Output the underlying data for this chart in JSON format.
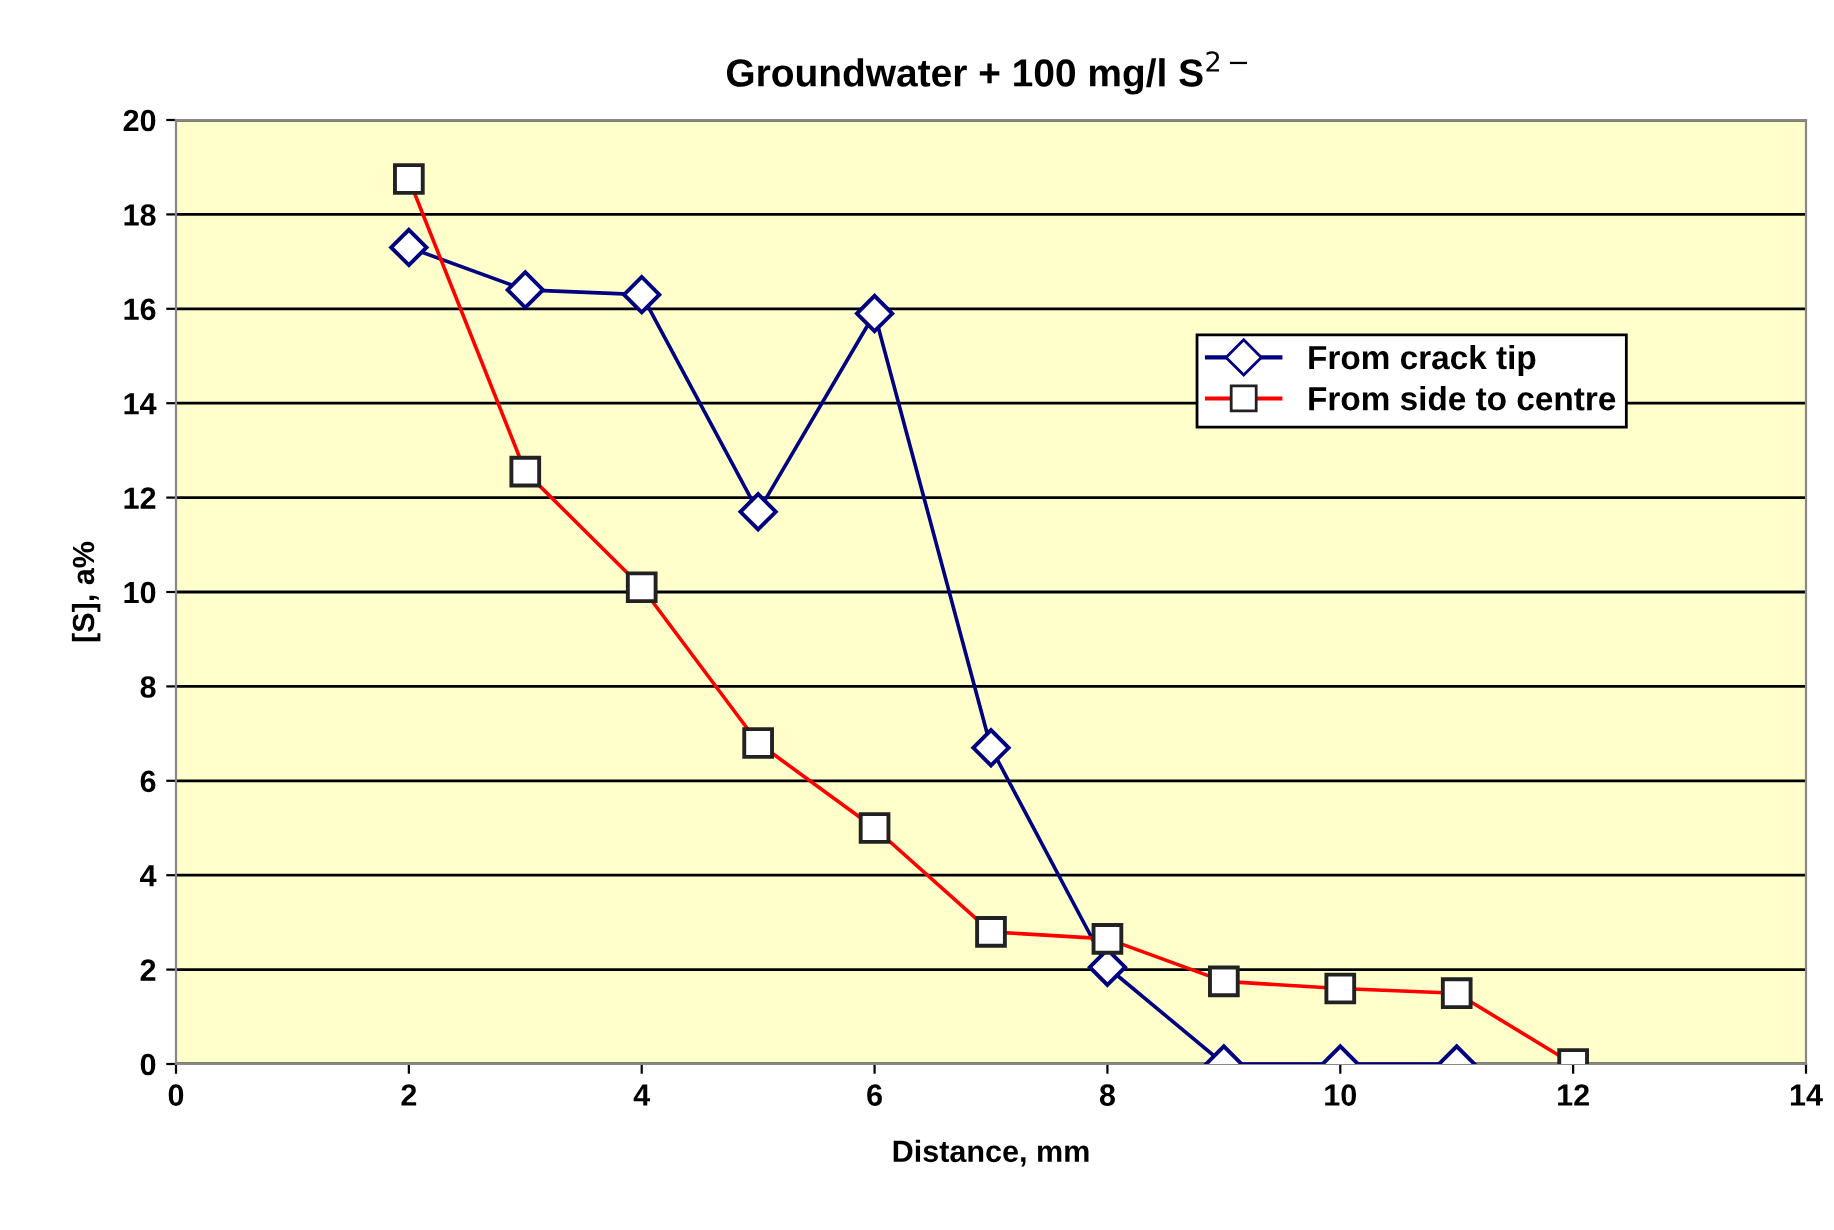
{
  "chart_data": {
    "type": "line",
    "title": "Groundwater + 100 mg/l S$^{2−}$",
    "xlabel": "Distance, mm",
    "ylabel": "[S], a%",
    "series": [
      {
        "name": "From crack tip",
        "color": "#000080",
        "marker": "diamond",
        "x": [
          2,
          3,
          4,
          5,
          6,
          7,
          8,
          9,
          10,
          11
        ],
        "values": [
          17.3,
          16.4,
          16.3,
          11.7,
          15.9,
          6.7,
          2.05,
          0,
          0,
          0
        ]
      },
      {
        "name": "From side to centre",
        "color": "#ff0000",
        "marker": "square",
        "x": [
          2,
          3,
          4,
          5,
          6,
          7,
          8,
          9,
          10,
          11,
          12
        ],
        "values": [
          18.75,
          12.55,
          10.1,
          6.8,
          5.0,
          2.8,
          2.65,
          1.75,
          1.6,
          1.5,
          0
        ]
      }
    ],
    "xlim": [
      0,
      14
    ],
    "xticks": [
      0,
      2,
      4,
      6,
      8,
      10,
      12,
      14
    ],
    "ylim": [
      0,
      20
    ],
    "yticks": [
      0,
      2,
      4,
      6,
      8,
      10,
      12,
      14,
      16,
      18,
      20
    ],
    "grid": "y",
    "legend": "top right",
    "line_style": "solid"
  }
}
